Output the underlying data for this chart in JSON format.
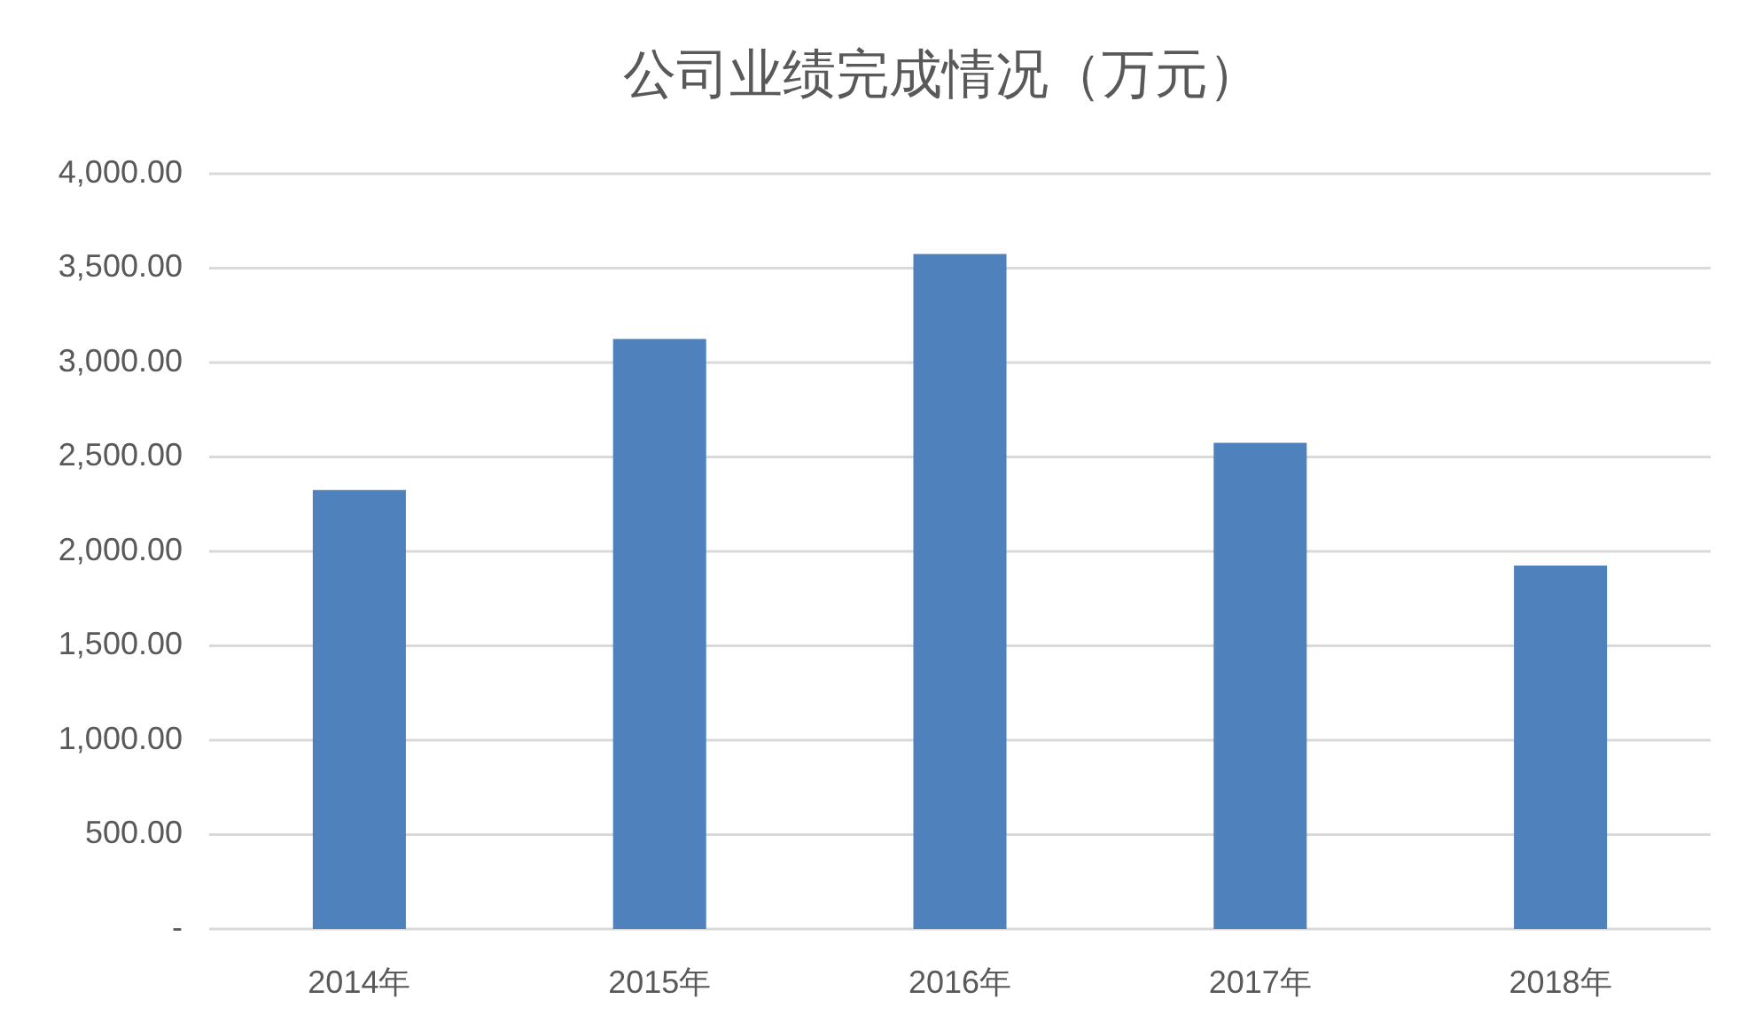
{
  "chart_data": {
    "type": "bar",
    "title": "公司业绩完成情况（万元）",
    "categories": [
      "2014年",
      "2015年",
      "2016年",
      "2017年",
      "2018年"
    ],
    "values": [
      2325,
      3125,
      3575,
      2575,
      1925
    ],
    "color": "#4f81bd",
    "ylim": [
      0,
      4000
    ],
    "yticks": [
      {
        "value": 0,
        "label": "-"
      },
      {
        "value": 500,
        "label": "500.00"
      },
      {
        "value": 1000,
        "label": "1,000.00"
      },
      {
        "value": 1500,
        "label": "1,500.00"
      },
      {
        "value": 2000,
        "label": "2,000.00"
      },
      {
        "value": 2500,
        "label": "2,500.00"
      },
      {
        "value": 3000,
        "label": "3,000.00"
      },
      {
        "value": 3500,
        "label": "3,500.00"
      },
      {
        "value": 4000,
        "label": "4,000.00"
      }
    ],
    "grid": "y"
  }
}
